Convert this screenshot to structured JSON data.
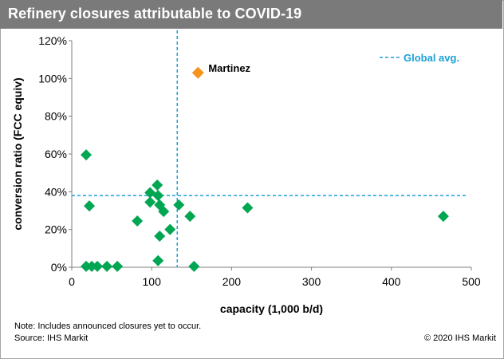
{
  "header": {
    "title": "Refinery closures attributable to COVID-19"
  },
  "footer": {
    "note": "Note: Includes announced closures yet to occur.",
    "source": "Source: IHS Markit",
    "copyright": "© 2020 IHS Markit"
  },
  "chart_data": {
    "type": "scatter",
    "title": "Refinery closures attributable to COVID-19",
    "xlabel": "capacity (1,000 b/d)",
    "ylabel": "conversion ratio (FCC equiv)",
    "xlim": [
      0,
      500
    ],
    "ylim": [
      0,
      120
    ],
    "xticks": [
      0,
      100,
      200,
      300,
      400,
      500
    ],
    "xtick_labels": [
      "0",
      "100",
      "200",
      "300",
      "400",
      "500"
    ],
    "yticks": [
      0,
      20,
      40,
      60,
      80,
      100,
      120
    ],
    "ytick_labels": [
      "0%",
      "20%",
      "40%",
      "60%",
      "80%",
      "100%",
      "120%"
    ],
    "grid": false,
    "colors": {
      "points": "#00a651",
      "highlight": "#f7941d",
      "reference": "#1ba1d6",
      "title_bar": "#7a7a7a"
    },
    "series": [
      {
        "values": [
          {
            "x": 18,
            "y": 59.5
          },
          {
            "x": 22,
            "y": 32.5
          },
          {
            "x": 18,
            "y": 0.5
          },
          {
            "x": 25,
            "y": 0.5
          },
          {
            "x": 32,
            "y": 0.5
          },
          {
            "x": 44,
            "y": 0.5
          },
          {
            "x": 57,
            "y": 0.5
          },
          {
            "x": 82,
            "y": 24.5
          },
          {
            "x": 98,
            "y": 39.5
          },
          {
            "x": 98,
            "y": 34.5
          },
          {
            "x": 107,
            "y": 43.5
          },
          {
            "x": 108,
            "y": 38
          },
          {
            "x": 110,
            "y": 33
          },
          {
            "x": 115,
            "y": 29.5
          },
          {
            "x": 110,
            "y": 16.5
          },
          {
            "x": 108,
            "y": 3.5
          },
          {
            "x": 123,
            "y": 20
          },
          {
            "x": 134,
            "y": 33
          },
          {
            "x": 148,
            "y": 27
          },
          {
            "x": 153,
            "y": 0.5
          },
          {
            "x": 220,
            "y": 31.5
          },
          {
            "x": 465,
            "y": 27
          }
        ]
      },
      {
        "values": [
          {
            "x": 158,
            "y": 103,
            "label": "Martinez"
          }
        ]
      }
    ],
    "reference_lines": {
      "horizontal_y": 38,
      "vertical_x": 132,
      "legend_label": "Global avg."
    }
  }
}
